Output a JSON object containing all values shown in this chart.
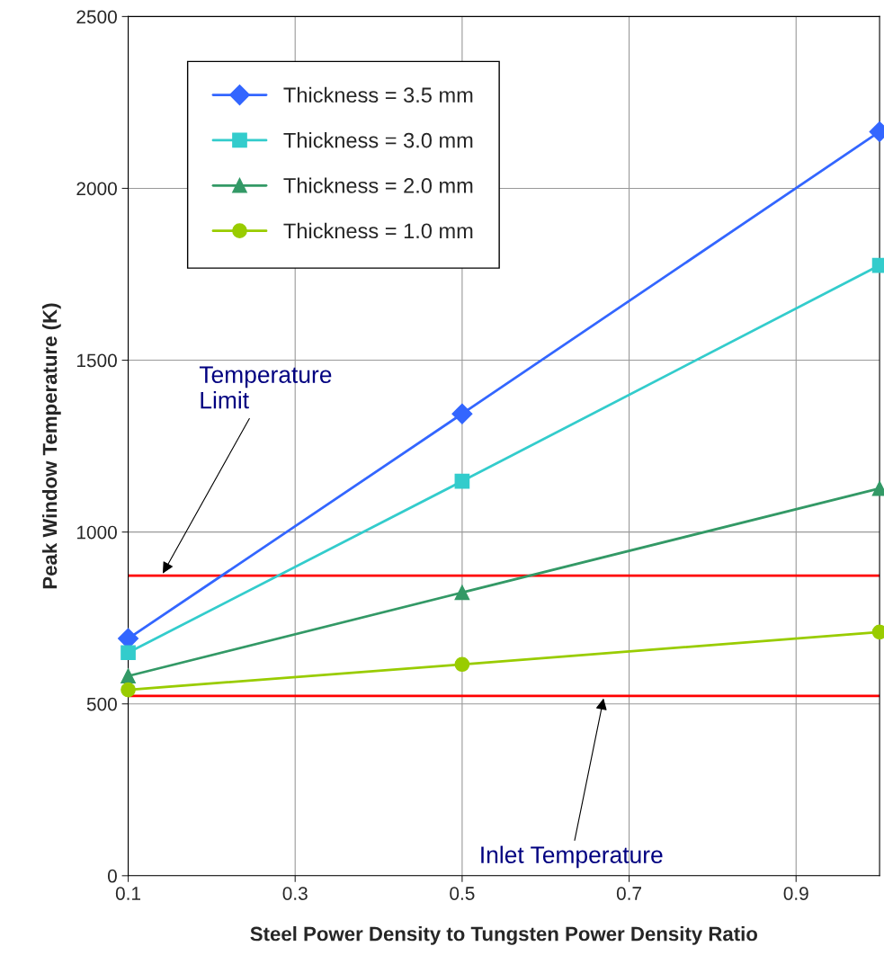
{
  "chart_data": {
    "type": "line",
    "xlabel": "Steel Power Density to Tungsten Power Density Ratio",
    "ylabel": "Peak Window Temperature (K)",
    "x": [
      0.1,
      0.5,
      1.0
    ],
    "series": [
      {
        "name": "Thickness = 3.5 mm",
        "color": "#3366ff",
        "marker": "diamond",
        "values": [
          690,
          1344,
          2165
        ]
      },
      {
        "name": "Thickness = 3.0 mm",
        "color": "#33cccc",
        "marker": "square",
        "values": [
          649,
          1148,
          1776
        ]
      },
      {
        "name": "Thickness = 2.0 mm",
        "color": "#339966",
        "marker": "triangle",
        "values": [
          581,
          824,
          1127
        ]
      },
      {
        "name": "Thickness = 1.0 mm",
        "color": "#99cc00",
        "marker": "circle",
        "values": [
          541,
          615,
          709
        ]
      }
    ],
    "ref_lines": [
      {
        "axis": "y",
        "value": 873,
        "color": "#ff0000"
      },
      {
        "axis": "y",
        "value": 523,
        "color": "#ff0000"
      }
    ],
    "annotations": [
      {
        "text": "Temperature\nLimit",
        "x": 0.14,
        "y": 873
      },
      {
        "text": "Inlet Temperature",
        "x": 0.67,
        "y": 523
      }
    ],
    "xlim": [
      0.1,
      1.0
    ],
    "xticks": [
      0.1,
      0.3,
      0.5,
      0.7,
      0.9
    ],
    "ylim": [
      0,
      2500
    ],
    "yticks": [
      0,
      500,
      1000,
      1500,
      2000,
      2500
    ],
    "grid": true,
    "legend": "top left",
    "line_style": "solid"
  }
}
